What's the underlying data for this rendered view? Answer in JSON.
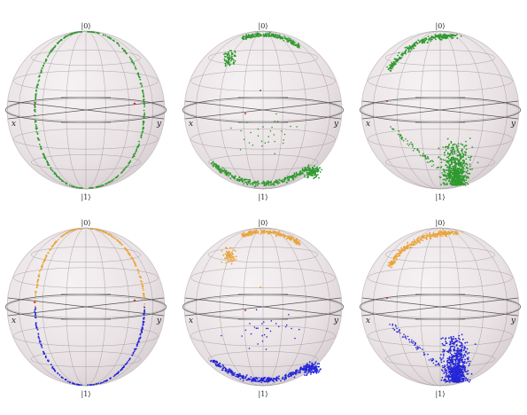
{
  "labels": {
    "ket_zero": "|0⟩",
    "ket_one": "|1⟩",
    "axis_x": "x",
    "axis_y": "y"
  },
  "colors": {
    "sphere_fill": "#e9e2e4",
    "grid": "#8a8587",
    "green": "#2f9a2f",
    "orange": "#eba43a",
    "blue": "#2426d6",
    "red": "#d42a2a"
  },
  "panels": [
    {
      "name": "sphere-row1-left",
      "pattern": "great_circle",
      "top_color": "green",
      "bottom_color": "green"
    },
    {
      "name": "sphere-row1-middle",
      "pattern": "cluster_spread",
      "top_color": "green",
      "bottom_color": "green"
    },
    {
      "name": "sphere-row1-right",
      "pattern": "cone_cluster",
      "top_color": "green",
      "bottom_color": "green"
    },
    {
      "name": "sphere-row2-left",
      "pattern": "great_circle",
      "top_color": "orange",
      "bottom_color": "blue"
    },
    {
      "name": "sphere-row2-middle",
      "pattern": "cluster_spread",
      "top_color": "orange",
      "bottom_color": "blue"
    },
    {
      "name": "sphere-row2-right",
      "pattern": "cone_cluster",
      "top_color": "orange",
      "bottom_color": "blue"
    }
  ]
}
